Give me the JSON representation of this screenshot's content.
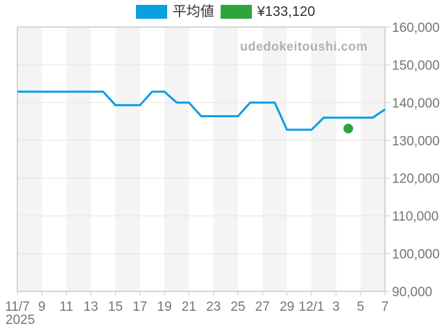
{
  "watermark": "udedokeitoushi.com",
  "legend": {
    "items": [
      {
        "label": "平均値",
        "color": "#0a9fe3"
      },
      {
        "label": "¥133,120",
        "color": "#2ea53c"
      }
    ]
  },
  "chart_data": {
    "type": "line",
    "title": "",
    "xlabel": "",
    "ylabel": "",
    "x_axis_year": "2025",
    "x": [
      "11/7",
      "11/8",
      "11/9",
      "11/10",
      "11/11",
      "11/12",
      "11/13",
      "11/14",
      "11/15",
      "11/16",
      "11/17",
      "11/18",
      "11/19",
      "11/20",
      "11/21",
      "11/22",
      "11/23",
      "11/24",
      "11/25",
      "11/26",
      "11/27",
      "11/28",
      "11/29",
      "11/30",
      "12/1",
      "12/2",
      "12/3",
      "12/4",
      "12/5",
      "12/6",
      "12/7"
    ],
    "x_tick_labels": [
      "11/7",
      "9",
      "11",
      "13",
      "15",
      "17",
      "19",
      "21",
      "23",
      "25",
      "27",
      "29",
      "12/1",
      "3",
      "5",
      "7"
    ],
    "x_tick_every": 2,
    "ylim": [
      90000,
      160000
    ],
    "y_tick_step": 10000,
    "y_tick_labels": [
      "90,000",
      "100,000",
      "110,000",
      "120,000",
      "130,000",
      "140,000",
      "150,000",
      "160,000"
    ],
    "grid": true,
    "legend_position": "top",
    "series": [
      {
        "name": "平均値",
        "type": "line",
        "color": "#0a9fe3",
        "values": [
          142900,
          142900,
          142900,
          142900,
          142900,
          142900,
          142900,
          142900,
          139300,
          139300,
          139300,
          142900,
          142900,
          140000,
          140000,
          136400,
          136400,
          136400,
          136400,
          140000,
          140000,
          140000,
          132800,
          132800,
          132800,
          136000,
          136000,
          136000,
          136000,
          136000,
          138200
        ]
      },
      {
        "name": "¥133,120",
        "type": "point",
        "color": "#2ea53c",
        "x": "12/4",
        "value": 133120
      }
    ]
  }
}
